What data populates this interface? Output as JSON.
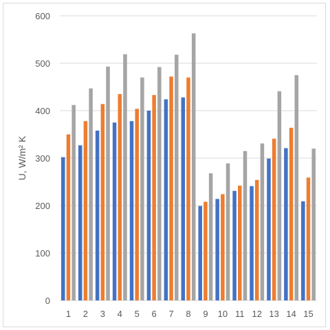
{
  "chart_data": {
    "type": "bar",
    "title": "",
    "xlabel": "",
    "ylabel": "U, W/m² K",
    "ylim": [
      0,
      600
    ],
    "yticks": [
      0,
      100,
      200,
      300,
      400,
      500,
      600
    ],
    "grid": true,
    "legend": "none",
    "categories": [
      "1",
      "2",
      "3",
      "4",
      "5",
      "6",
      "7",
      "8",
      "9",
      "10",
      "11",
      "12",
      "13",
      "14",
      "15"
    ],
    "series": [
      {
        "color": "#4472c4",
        "values": [
          302,
          327,
          358,
          375,
          378,
          400,
          424,
          428,
          199,
          214,
          231,
          241,
          299,
          321,
          209
        ]
      },
      {
        "color": "#ed7d31",
        "values": [
          350,
          378,
          414,
          435,
          404,
          433,
          472,
          470,
          208,
          224,
          242,
          254,
          341,
          364,
          259
        ]
      },
      {
        "color": "#a5a5a5",
        "values": [
          412,
          447,
          493,
          519,
          470,
          492,
          518,
          563,
          268,
          289,
          315,
          331,
          441,
          475,
          320
        ]
      }
    ]
  }
}
